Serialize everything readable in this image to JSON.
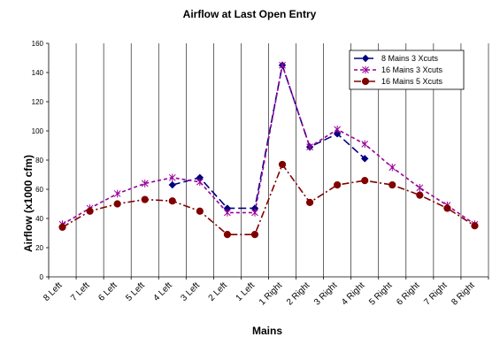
{
  "chart_data": {
    "type": "line",
    "title": "Airflow at Last Open Entry",
    "xlabel": "Mains",
    "ylabel": "Airflow (x1000 cfm)",
    "ylim": [
      0,
      160
    ],
    "yticks": [
      0,
      20,
      40,
      60,
      80,
      100,
      120,
      140,
      160
    ],
    "grid": "vertical",
    "legend_position": "top-right",
    "categories": [
      "8 Left",
      "7 Left",
      "6 Left",
      "5 Left",
      "4 Left",
      "3 Left",
      "2 Left",
      "1 Left",
      "1 Right",
      "2 Right",
      "3 Right",
      "4 Right",
      "5 Right",
      "6 Right",
      "7 Right",
      "8 Right"
    ],
    "series": [
      {
        "name": "8 Mains 3 Xcuts",
        "color": "#000080",
        "marker": "diamond",
        "dash": "long-dash",
        "points": [
          {
            "x": 4.5,
            "y": 63
          },
          {
            "x": 5.5,
            "y": 68
          },
          {
            "x": 6.5,
            "y": 47
          },
          {
            "x": 7.5,
            "y": 47
          },
          {
            "x": 8.5,
            "y": 145
          },
          {
            "x": 9.5,
            "y": 89
          },
          {
            "x": 10.5,
            "y": 98
          },
          {
            "x": 11.5,
            "y": 81
          }
        ]
      },
      {
        "name": "16 Mains 3 Xcuts",
        "color": "#990099",
        "marker": "asterisk",
        "dash": "short-dash",
        "points": [
          {
            "x": 0.5,
            "y": 36
          },
          {
            "x": 1.5,
            "y": 47
          },
          {
            "x": 2.5,
            "y": 57
          },
          {
            "x": 3.5,
            "y": 64
          },
          {
            "x": 4.5,
            "y": 68
          },
          {
            "x": 5.5,
            "y": 65
          },
          {
            "x": 6.5,
            "y": 44
          },
          {
            "x": 7.5,
            "y": 44
          },
          {
            "x": 8.5,
            "y": 145
          },
          {
            "x": 9.5,
            "y": 89
          },
          {
            "x": 10.5,
            "y": 101
          },
          {
            "x": 11.5,
            "y": 91
          },
          {
            "x": 12.5,
            "y": 75
          },
          {
            "x": 13.5,
            "y": 61
          },
          {
            "x": 14.5,
            "y": 49
          },
          {
            "x": 15.5,
            "y": 36
          }
        ]
      },
      {
        "name": "16 Mains 5 Xcuts",
        "color": "#800000",
        "marker": "circle",
        "dash": "dash-dot",
        "points": [
          {
            "x": 0.5,
            "y": 34
          },
          {
            "x": 1.5,
            "y": 45
          },
          {
            "x": 2.5,
            "y": 50
          },
          {
            "x": 3.5,
            "y": 53
          },
          {
            "x": 4.5,
            "y": 52
          },
          {
            "x": 5.5,
            "y": 45
          },
          {
            "x": 6.5,
            "y": 29
          },
          {
            "x": 7.5,
            "y": 29
          },
          {
            "x": 8.5,
            "y": 77
          },
          {
            "x": 9.5,
            "y": 51
          },
          {
            "x": 10.5,
            "y": 63
          },
          {
            "x": 11.5,
            "y": 66
          },
          {
            "x": 12.5,
            "y": 63
          },
          {
            "x": 13.5,
            "y": 56
          },
          {
            "x": 14.5,
            "y": 47
          },
          {
            "x": 15.5,
            "y": 35
          }
        ]
      }
    ]
  }
}
